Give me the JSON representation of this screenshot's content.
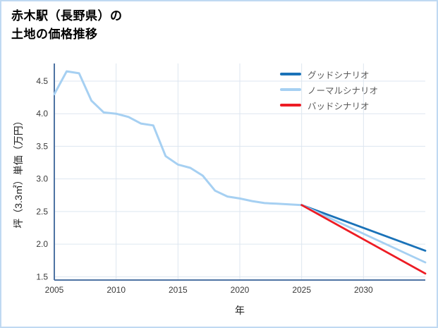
{
  "title": {
    "line1": "赤木駅（長野県）の",
    "line2": "土地の価格推移"
  },
  "chart_data": {
    "type": "line",
    "title": "赤木駅（長野県）の土地の価格推移",
    "xlabel": "年",
    "ylabel": "坪（3.3㎡）単価（万円）",
    "xlim": [
      2005,
      2035
    ],
    "ylim": [
      1.45,
      4.77
    ],
    "xticks": [
      2005,
      2010,
      2015,
      2020,
      2025,
      2030
    ],
    "yticks": [
      1.5,
      2.0,
      2.5,
      3.0,
      3.5,
      4.0,
      4.5
    ],
    "grid": true,
    "legend_position": "top-right",
    "axis_color": "#4e73a3",
    "grid_color": "#dde6f0",
    "tick_label_color": "#3a3a3a",
    "series": [
      {
        "name": "グッドシナリオ",
        "role": "forecast-good",
        "color": "#1a72b8",
        "width": 2.8,
        "in_legend": true,
        "x": [
          2025,
          2035
        ],
        "values": [
          2.6,
          1.9
        ]
      },
      {
        "name": "ノーマルシナリオ",
        "role": "forecast-normal",
        "color": "#a6d0f2",
        "width": 2.8,
        "in_legend": true,
        "x": [
          2025,
          2035
        ],
        "values": [
          2.6,
          1.72
        ]
      },
      {
        "name": "バッドシナリオ",
        "role": "forecast-bad",
        "color": "#ed1c24",
        "width": 2.8,
        "in_legend": true,
        "x": [
          2025,
          2035
        ],
        "values": [
          2.6,
          1.55
        ]
      },
      {
        "name": "price-history",
        "role": "history",
        "color": "#a6d0f2",
        "width": 3,
        "in_legend": false,
        "x": [
          2005,
          2006,
          2007,
          2008,
          2009,
          2010,
          2011,
          2012,
          2013,
          2014,
          2015,
          2016,
          2017,
          2018,
          2019,
          2020,
          2021,
          2022,
          2023,
          2024,
          2025
        ],
        "values": [
          4.3,
          4.65,
          4.62,
          4.2,
          4.02,
          4.0,
          3.95,
          3.85,
          3.82,
          3.35,
          3.22,
          3.17,
          3.05,
          2.82,
          2.73,
          2.7,
          2.66,
          2.63,
          2.62,
          2.61,
          2.6
        ]
      }
    ]
  }
}
